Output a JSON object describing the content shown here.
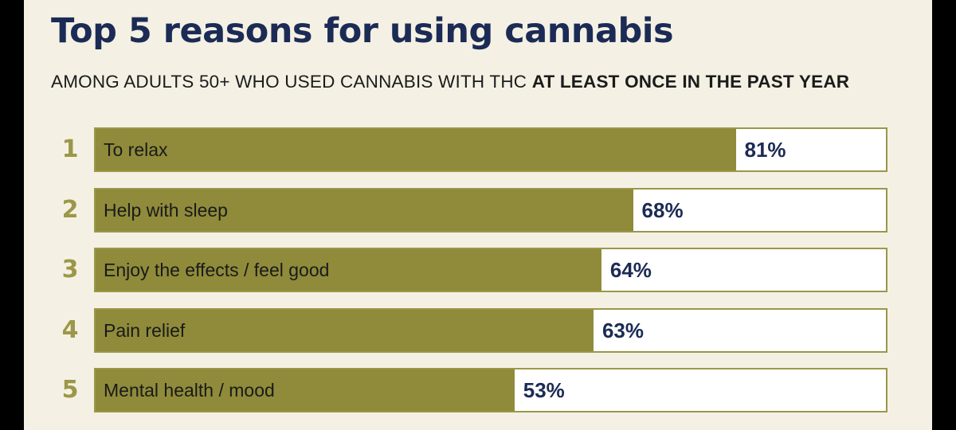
{
  "title": "Top 5 reasons for using cannabis",
  "subtitle": {
    "regular": "AMONG ADULTS 50+ WHO USED CANNABIS WITH THC ",
    "bold": "AT LEAST ONCE IN THE PAST YEAR"
  },
  "colors": {
    "bar_fill": "#8f8b3a",
    "bar_border": "#9c9749",
    "rank_number": "#9c9749",
    "value_text": "#1c2b55",
    "title_text": "#1c2b55",
    "background": "#f4f1e4"
  },
  "chart_data": {
    "type": "bar",
    "orientation": "horizontal",
    "title": "Top 5 reasons for using cannabis",
    "subtitle": "AMONG ADULTS 50+ WHO USED CANNABIS WITH THC AT LEAST ONCE IN THE PAST YEAR",
    "ranks": [
      "1",
      "2",
      "3",
      "4",
      "5"
    ],
    "categories": [
      "To relax",
      "Help with sleep",
      "Enjoy the effects / feel good",
      "Pain relief",
      "Mental health / mood"
    ],
    "values": [
      81,
      68,
      64,
      63,
      53
    ],
    "value_labels": [
      "81%",
      "68%",
      "64%",
      "63%",
      "53%"
    ],
    "unit": "%",
    "xlim": [
      0,
      100
    ],
    "grid": false,
    "legend": "none"
  }
}
